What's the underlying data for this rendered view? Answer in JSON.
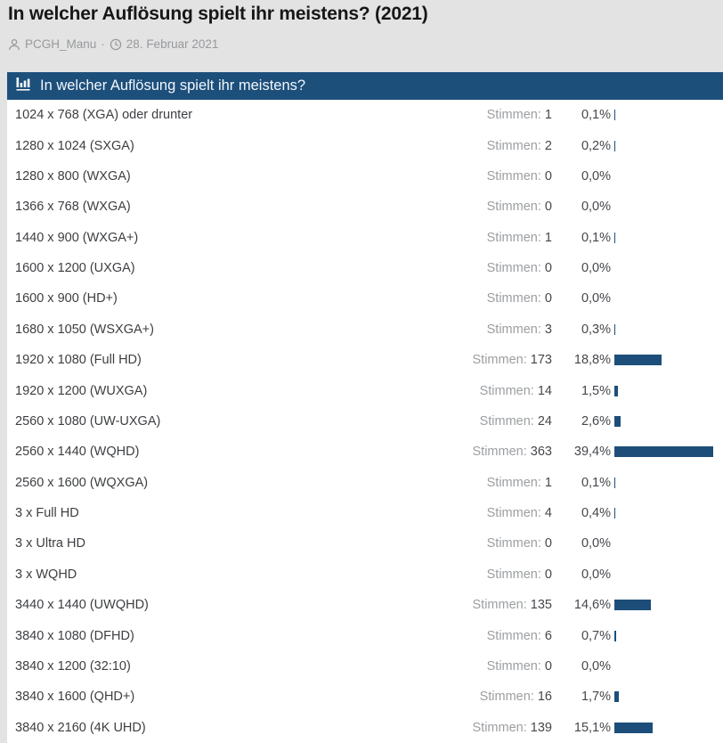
{
  "page": {
    "title": "In welcher Auflösung spielt ihr meistens? (2021)",
    "byline": {
      "author": "PCGH_Manu",
      "separator": "·",
      "date": "28. Februar 2021"
    }
  },
  "poll": {
    "header": "In welcher Auflösung spielt ihr meistens?",
    "votes_word": "Stimmen:",
    "options": [
      {
        "label": "1024 x 768 (XGA) oder drunter",
        "votes": "1",
        "pct": 0.1,
        "pct_label": "0,1%"
      },
      {
        "label": "1280 x 1024 (SXGA)",
        "votes": "2",
        "pct": 0.2,
        "pct_label": "0,2%"
      },
      {
        "label": "1280 x 800 (WXGA)",
        "votes": "0",
        "pct": 0.0,
        "pct_label": "0,0%"
      },
      {
        "label": "1366 x 768 (WXGA)",
        "votes": "0",
        "pct": 0.0,
        "pct_label": "0,0%"
      },
      {
        "label": "1440 x 900 (WXGA+)",
        "votes": "1",
        "pct": 0.1,
        "pct_label": "0,1%"
      },
      {
        "label": "1600 x 1200 (UXGA)",
        "votes": "0",
        "pct": 0.0,
        "pct_label": "0,0%"
      },
      {
        "label": "1600 x 900 (HD+)",
        "votes": "0",
        "pct": 0.0,
        "pct_label": "0,0%"
      },
      {
        "label": "1680 x 1050 (WSXGA+)",
        "votes": "3",
        "pct": 0.3,
        "pct_label": "0,3%"
      },
      {
        "label": "1920 x 1080 (Full HD)",
        "votes": "173",
        "pct": 18.8,
        "pct_label": "18,8%"
      },
      {
        "label": "1920 x 1200 (WUXGA)",
        "votes": "14",
        "pct": 1.5,
        "pct_label": "1,5%"
      },
      {
        "label": "2560 x 1080 (UW-UXGA)",
        "votes": "24",
        "pct": 2.6,
        "pct_label": "2,6%"
      },
      {
        "label": "2560 x 1440 (WQHD)",
        "votes": "363",
        "pct": 39.4,
        "pct_label": "39,4%"
      },
      {
        "label": "2560 x 1600 (WQXGA)",
        "votes": "1",
        "pct": 0.1,
        "pct_label": "0,1%"
      },
      {
        "label": "3 x Full HD",
        "votes": "4",
        "pct": 0.4,
        "pct_label": "0,4%"
      },
      {
        "label": "3 x Ultra HD",
        "votes": "0",
        "pct": 0.0,
        "pct_label": "0,0%"
      },
      {
        "label": "3 x WQHD",
        "votes": "0",
        "pct": 0.0,
        "pct_label": "0,0%"
      },
      {
        "label": "3440 x 1440 (UWQHD)",
        "votes": "135",
        "pct": 14.6,
        "pct_label": "14,6%"
      },
      {
        "label": "3840 x 1080 (DFHD)",
        "votes": "6",
        "pct": 0.7,
        "pct_label": "0,7%"
      },
      {
        "label": "3840 x 1200 (32:10)",
        "votes": "0",
        "pct": 0.0,
        "pct_label": "0,0%"
      },
      {
        "label": "3840 x 1600 (QHD+)",
        "votes": "16",
        "pct": 1.7,
        "pct_label": "1,7%"
      },
      {
        "label": "3840 x 2160 (4K UHD)",
        "votes": "139",
        "pct": 15.1,
        "pct_label": "15,1%"
      }
    ]
  },
  "colors": {
    "page_background": "#e3e3e3",
    "header_blue": "#1d4f7b",
    "bar_blue": "#1d4e79",
    "muted_gray": "#9b9ea1",
    "text_dark": "#3c3e41"
  },
  "chart_data": {
    "type": "bar",
    "orientation": "horizontal",
    "title": "In welcher Auflösung spielt ihr meistens?",
    "categories": [
      "1024 x 768 (XGA) oder drunter",
      "1280 x 1024 (SXGA)",
      "1280 x 800 (WXGA)",
      "1366 x 768 (WXGA)",
      "1440 x 900 (WXGA+)",
      "1600 x 1200 (UXGA)",
      "1600 x 900 (HD+)",
      "1680 x 1050 (WSXGA+)",
      "1920 x 1080 (Full HD)",
      "1920 x 1200 (WUXGA)",
      "2560 x 1080 (UW-UXGA)",
      "2560 x 1440 (WQHD)",
      "2560 x 1600 (WQXGA)",
      "3 x Full HD",
      "3 x Ultra HD",
      "3 x WQHD",
      "3440 x 1440 (UWQHD)",
      "3840 x 1080 (DFHD)",
      "3840 x 1200 (32:10)",
      "3840 x 1600 (QHD+)",
      "3840 x 2160 (4K UHD)"
    ],
    "series": [
      {
        "name": "Stimmen",
        "values": [
          1,
          2,
          0,
          0,
          1,
          0,
          0,
          3,
          173,
          14,
          24,
          363,
          1,
          4,
          0,
          0,
          135,
          6,
          0,
          16,
          139
        ]
      },
      {
        "name": "Prozent",
        "values": [
          0.1,
          0.2,
          0.0,
          0.0,
          0.1,
          0.0,
          0.0,
          0.3,
          18.8,
          1.5,
          2.6,
          39.4,
          0.1,
          0.4,
          0.0,
          0.0,
          14.6,
          0.7,
          0.0,
          1.7,
          15.1
        ]
      }
    ],
    "value_suffix": "%",
    "xlim": [
      0,
      40
    ],
    "grid": false,
    "legend": false
  }
}
